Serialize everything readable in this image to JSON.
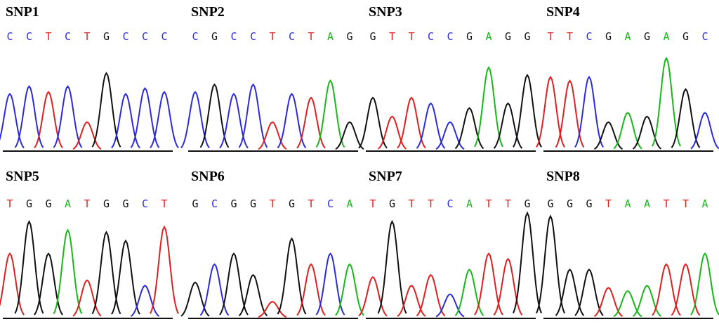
{
  "panels": [
    {
      "label": "SNP1",
      "bases": [
        "C",
        "C",
        "T",
        "C",
        "T",
        "G",
        "C",
        "C",
        "C"
      ]
    },
    {
      "label": "SNP2",
      "bases": [
        "C",
        "G",
        "C",
        "C",
        "T",
        "C",
        "T",
        "A",
        "G"
      ]
    },
    {
      "label": "SNP3",
      "bases": [
        "G",
        "T",
        "T",
        "C",
        "C",
        "G",
        "A",
        "G",
        "G"
      ]
    },
    {
      "label": "SNP4",
      "bases": [
        "T",
        "T",
        "C",
        "G",
        "A",
        "G",
        "A",
        "G",
        "C"
      ]
    },
    {
      "label": "SNP5",
      "bases": [
        "T",
        "G",
        "G",
        "A",
        "T",
        "G",
        "G",
        "C",
        "T"
      ]
    },
    {
      "label": "SNP6",
      "bases": [
        "G",
        "C",
        "G",
        "G",
        "T",
        "G",
        "T",
        "C",
        "A"
      ]
    },
    {
      "label": "SNP7",
      "bases": [
        "T",
        "G",
        "T",
        "T",
        "C",
        "A",
        "T",
        "T",
        "G"
      ]
    },
    {
      "label": "SNP8",
      "bases": [
        "G",
        "G",
        "G",
        "T",
        "A",
        "A",
        "T",
        "T",
        "A"
      ]
    }
  ]
}
